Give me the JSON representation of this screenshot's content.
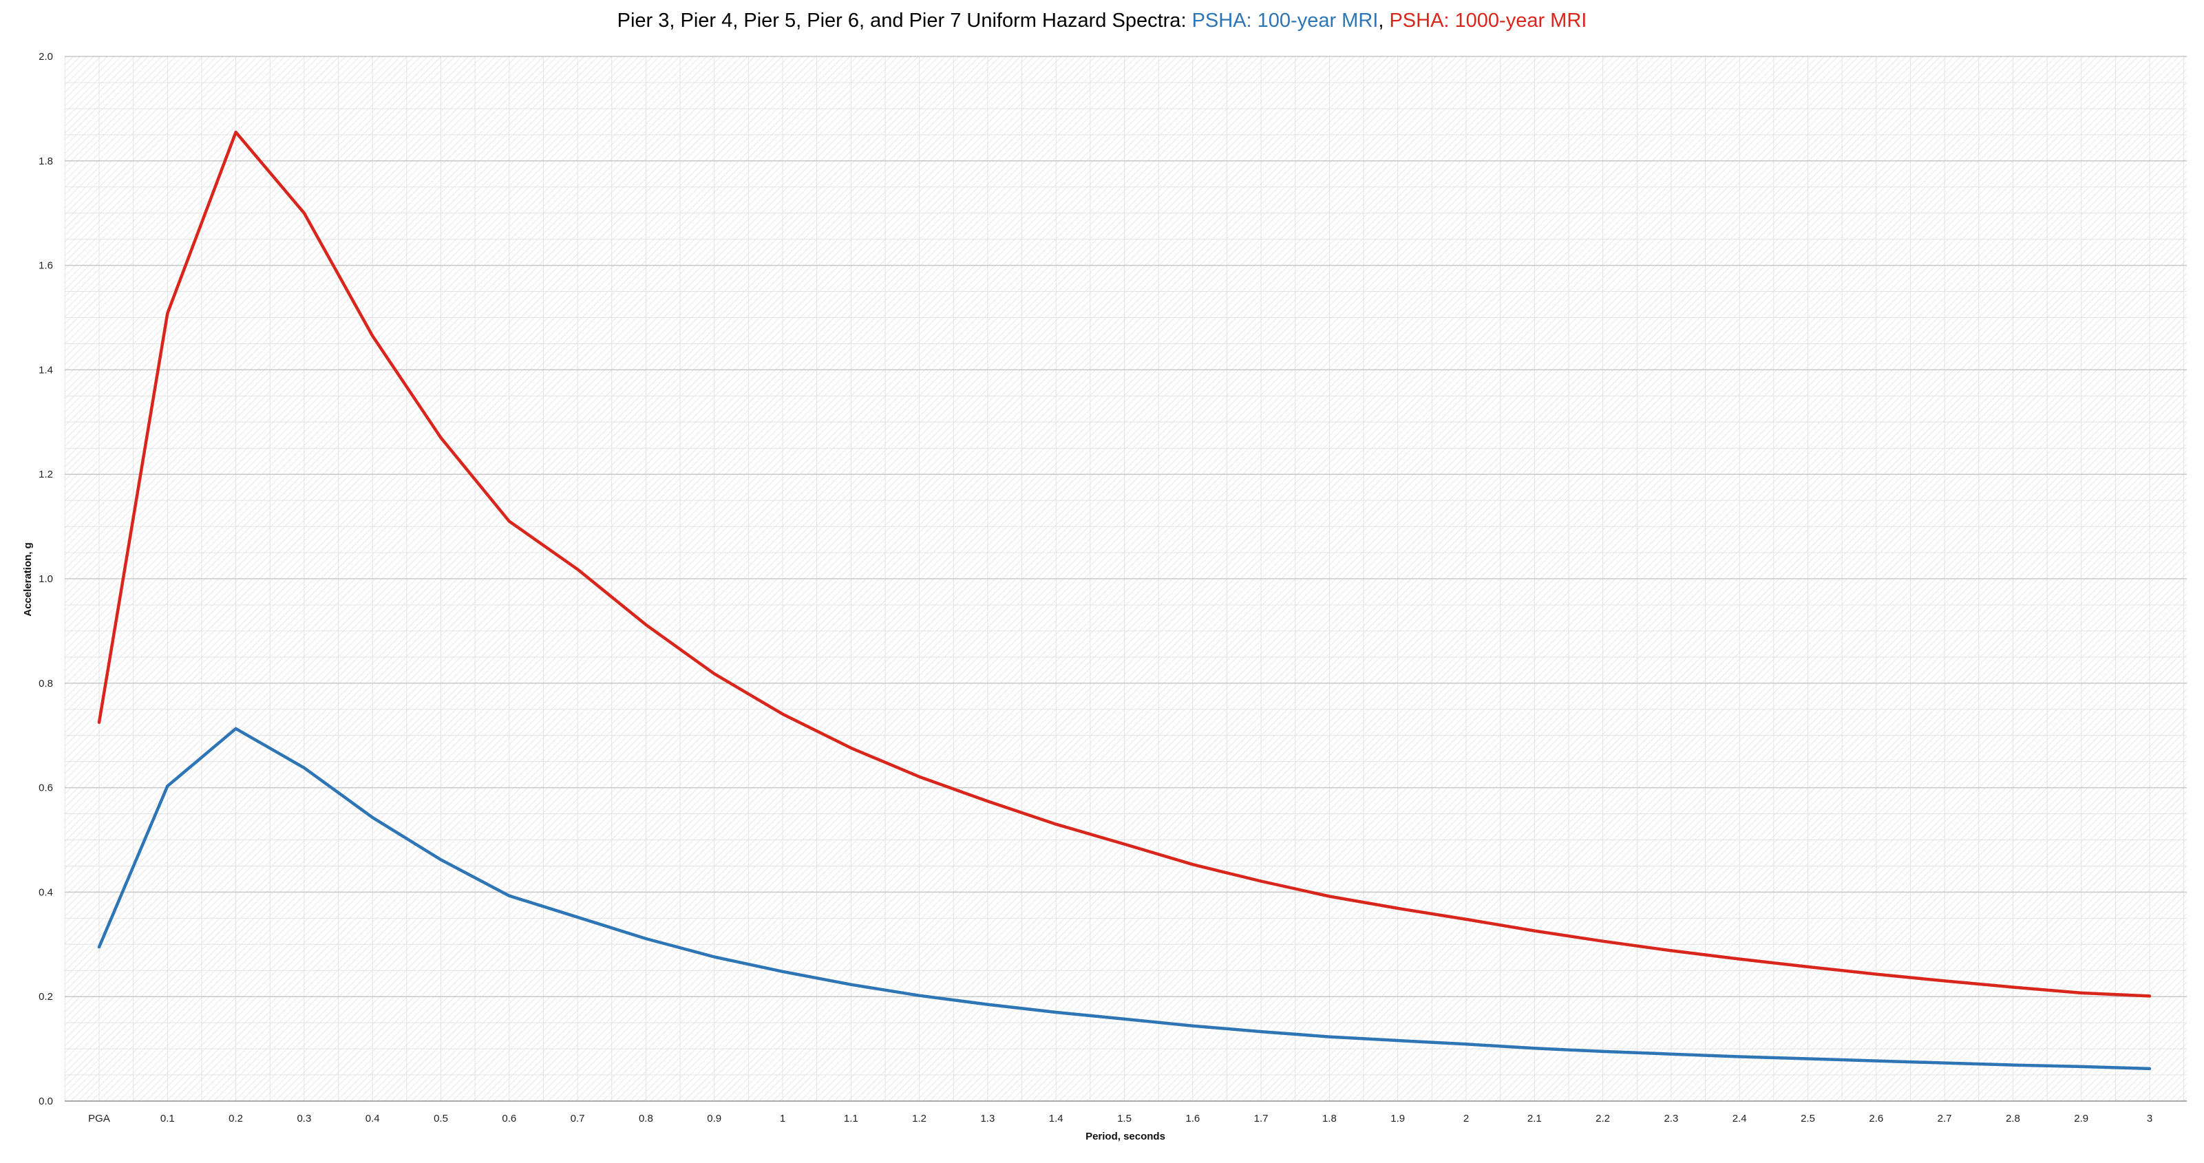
{
  "chart_data": {
    "type": "line",
    "title": {
      "prefix": "Pier 3, Pier 4, Pier 5, Pier 6, and Pier 7 Uniform Hazard Spectra: ",
      "separator": ", "
    },
    "xlabel": "Period, seconds",
    "ylabel": "Acceleration, g",
    "categories": [
      "PGA",
      "0.1",
      "0.2",
      "0.3",
      "0.4",
      "0.5",
      "0.6",
      "0.7",
      "0.8",
      "0.9",
      "1",
      "1.1",
      "1.2",
      "1.3",
      "1.4",
      "1.5",
      "1.6",
      "1.7",
      "1.8",
      "1.9",
      "2",
      "2.1",
      "2.2",
      "2.3",
      "2.4",
      "2.5",
      "2.6",
      "2.7",
      "2.8",
      "2.9",
      "3"
    ],
    "ylim": [
      0,
      2.0
    ],
    "yticks": [
      "0.0",
      "0.2",
      "0.4",
      "0.6",
      "0.8",
      "1.0",
      "1.2",
      "1.4",
      "1.6",
      "1.8",
      "2.0"
    ],
    "grid": true,
    "legend": "in title",
    "series": [
      {
        "name": "PSHA: 100-year MRI",
        "color": "#2e75b6",
        "values": [
          0.295,
          0.603,
          0.713,
          0.638,
          0.543,
          0.462,
          0.393,
          0.352,
          0.311,
          0.276,
          0.248,
          0.223,
          0.202,
          0.185,
          0.17,
          0.157,
          0.144,
          0.133,
          0.123,
          0.116,
          0.109,
          0.101,
          0.095,
          0.09,
          0.085,
          0.081,
          0.077,
          0.073,
          0.069,
          0.066,
          0.062
        ]
      },
      {
        "name": "PSHA: 1000-year MRI",
        "color": "#d9261c",
        "values": [
          0.725,
          1.508,
          1.855,
          1.7,
          1.465,
          1.27,
          1.11,
          1.018,
          0.912,
          0.818,
          0.741,
          0.676,
          0.621,
          0.574,
          0.53,
          0.492,
          0.453,
          0.421,
          0.392,
          0.369,
          0.348,
          0.326,
          0.306,
          0.288,
          0.272,
          0.257,
          0.243,
          0.23,
          0.218,
          0.207,
          0.201
        ]
      }
    ]
  }
}
